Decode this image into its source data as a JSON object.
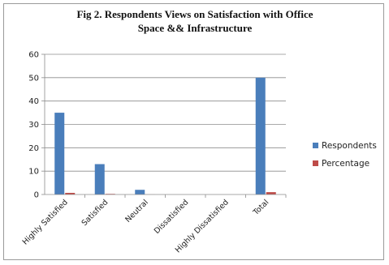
{
  "chart_data": {
    "type": "bar",
    "title": "Fig 2. Respondents Views on Satisfaction with Office Space && Infrastructure",
    "title_lines": [
      "Fig 2. Respondents Views on Satisfaction with Office",
      "Space && Infrastructure"
    ],
    "categories": [
      "Highly Satisfied",
      "Satisfied",
      "Neutral",
      "Dissatisfied",
      "Highly Dissatisfied",
      "Total"
    ],
    "series": [
      {
        "name": "Respondents",
        "color": "#4a7ebb",
        "values": [
          35,
          13,
          2,
          0,
          0,
          50
        ]
      },
      {
        "name": "Percentage",
        "color": "#be4b48",
        "values": [
          0.7,
          0.26,
          0.04,
          0,
          0,
          1
        ]
      }
    ],
    "ylim": [
      0,
      60
    ],
    "yticks": [
      0,
      10,
      20,
      30,
      40,
      50,
      60
    ],
    "grid": true,
    "legend_position": "right",
    "xlabel": "",
    "ylabel": ""
  }
}
